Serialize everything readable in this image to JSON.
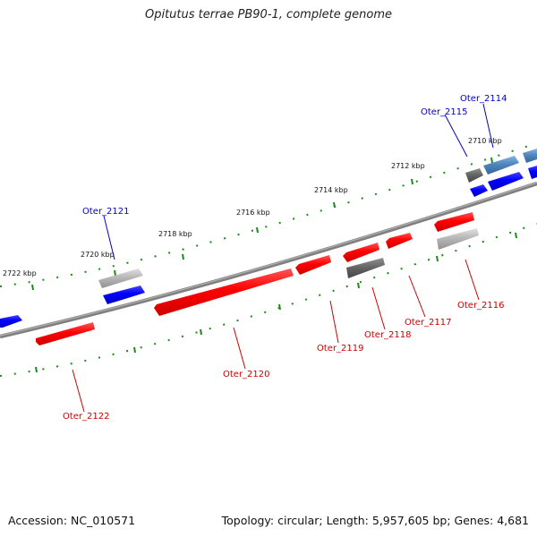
{
  "title": "Opitutus terrae PB90-1, complete genome",
  "footer": {
    "accession": "Accession: NC_010571",
    "info": "Topology: circular; Length: 5,957,605 bp; Genes: 4,681"
  },
  "colors": {
    "background": "#ffffff",
    "backbone": "#808080",
    "tick": "#1a8a1a",
    "reverse_gene": "#ff0000",
    "forward_gene": "#0000ff",
    "hypothetical_gene": "#6e6e6e",
    "highlight_gene": "#4f86bd",
    "reverse_label": "#cc0000",
    "forward_label": "#0000cc"
  },
  "scale_labels": [
    "2710 kbp",
    "2712 kbp",
    "2714 kbp",
    "2716 kbp",
    "2718 kbp",
    "2720 kbp",
    "2722 kbp"
  ],
  "gene_labels": [
    {
      "name": "Oter_2114",
      "strand": "forward"
    },
    {
      "name": "Oter_2115",
      "strand": "forward"
    },
    {
      "name": "Oter_2116",
      "strand": "reverse"
    },
    {
      "name": "Oter_2117",
      "strand": "reverse"
    },
    {
      "name": "Oter_2118",
      "strand": "reverse"
    },
    {
      "name": "Oter_2119",
      "strand": "reverse"
    },
    {
      "name": "Oter_2120",
      "strand": "reverse"
    },
    {
      "name": "Oter_2121",
      "strand": "forward"
    },
    {
      "name": "Oter_2122",
      "strand": "reverse"
    }
  ]
}
